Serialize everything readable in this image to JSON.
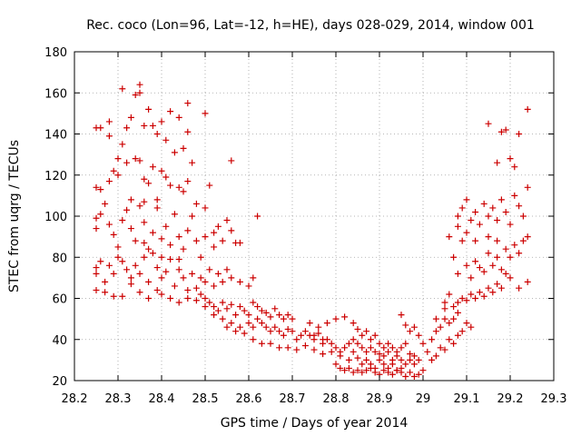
{
  "chart_data": {
    "type": "scatter",
    "title": "Rec. coco (Lon=96, Lat=-12, h=HE), days 028-029, 2014, window 001",
    "xlabel": "GPS time / Days of year 2014",
    "ylabel": "STEC from uqrg / TECUs",
    "xlim": [
      28.2,
      29.3
    ],
    "ylim": [
      20,
      180
    ],
    "grid": true,
    "legend": "none",
    "marker": "plus",
    "color": "#cc0000",
    "xticks": [
      {
        "value": 28.2,
        "label": "28.2"
      },
      {
        "value": 28.3,
        "label": "28.3"
      },
      {
        "value": 28.4,
        "label": "28.4"
      },
      {
        "value": 28.5,
        "label": "28.5"
      },
      {
        "value": 28.6,
        "label": "28.6"
      },
      {
        "value": 28.7,
        "label": "28.7"
      },
      {
        "value": 28.8,
        "label": "28.8"
      },
      {
        "value": 28.9,
        "label": "28.9"
      },
      {
        "value": 29.0,
        "label": "29"
      },
      {
        "value": 29.1,
        "label": "29.1"
      },
      {
        "value": 29.2,
        "label": "29.2"
      },
      {
        "value": 29.3,
        "label": "29.3"
      }
    ],
    "yticks": [
      {
        "value": 20,
        "label": "20"
      },
      {
        "value": 40,
        "label": "40"
      },
      {
        "value": 60,
        "label": "60"
      },
      {
        "value": 80,
        "label": "80"
      },
      {
        "value": 100,
        "label": "100"
      },
      {
        "value": 120,
        "label": "120"
      },
      {
        "value": 140,
        "label": "140"
      },
      {
        "value": 160,
        "label": "160"
      },
      {
        "value": 180,
        "label": "180"
      }
    ],
    "points": [
      [
        28.25,
        143
      ],
      [
        28.26,
        143
      ],
      [
        28.28,
        146
      ],
      [
        28.31,
        162
      ],
      [
        28.33,
        148
      ],
      [
        28.34,
        159
      ],
      [
        28.35,
        164
      ],
      [
        28.35,
        160
      ],
      [
        28.36,
        144
      ],
      [
        28.37,
        152
      ],
      [
        28.39,
        140
      ],
      [
        28.4,
        146
      ],
      [
        28.42,
        151
      ],
      [
        28.44,
        148
      ],
      [
        28.45,
        133
      ],
      [
        28.46,
        155
      ],
      [
        28.46,
        141
      ],
      [
        28.5,
        150
      ],
      [
        28.56,
        127
      ],
      [
        28.28,
        139
      ],
      [
        28.3,
        128
      ],
      [
        28.32,
        143
      ],
      [
        28.35,
        127
      ],
      [
        28.38,
        144
      ],
      [
        28.41,
        137
      ],
      [
        28.25,
        114
      ],
      [
        28.26,
        113
      ],
      [
        28.28,
        117
      ],
      [
        28.29,
        122
      ],
      [
        28.3,
        120
      ],
      [
        28.31,
        135
      ],
      [
        28.32,
        126
      ],
      [
        28.33,
        108
      ],
      [
        28.34,
        128
      ],
      [
        28.36,
        118
      ],
      [
        28.37,
        116
      ],
      [
        28.38,
        124
      ],
      [
        28.39,
        108
      ],
      [
        28.4,
        122
      ],
      [
        28.42,
        115
      ],
      [
        28.43,
        131
      ],
      [
        28.44,
        114
      ],
      [
        28.45,
        112
      ],
      [
        28.47,
        126
      ],
      [
        28.48,
        106
      ],
      [
        28.5,
        104
      ],
      [
        28.51,
        115
      ],
      [
        28.52,
        92
      ],
      [
        28.55,
        98
      ],
      [
        28.58,
        87
      ],
      [
        28.62,
        100
      ],
      [
        28.36,
        107
      ],
      [
        28.41,
        119
      ],
      [
        28.46,
        117
      ],
      [
        28.25,
        99
      ],
      [
        28.25,
        94
      ],
      [
        28.26,
        101
      ],
      [
        28.27,
        106
      ],
      [
        28.28,
        96
      ],
      [
        28.29,
        91
      ],
      [
        28.3,
        85
      ],
      [
        28.31,
        98
      ],
      [
        28.32,
        103
      ],
      [
        28.33,
        94
      ],
      [
        28.34,
        88
      ],
      [
        28.35,
        105
      ],
      [
        28.36,
        97
      ],
      [
        28.37,
        84
      ],
      [
        28.38,
        92
      ],
      [
        28.39,
        104
      ],
      [
        28.4,
        89
      ],
      [
        28.41,
        95
      ],
      [
        28.42,
        86
      ],
      [
        28.43,
        101
      ],
      [
        28.44,
        90
      ],
      [
        28.45,
        84
      ],
      [
        28.46,
        93
      ],
      [
        28.47,
        100
      ],
      [
        28.48,
        88
      ],
      [
        28.49,
        80
      ],
      [
        28.5,
        90
      ],
      [
        28.52,
        85
      ],
      [
        28.54,
        88
      ],
      [
        28.56,
        93
      ],
      [
        28.57,
        87
      ],
      [
        28.53,
        95
      ],
      [
        28.25,
        75
      ],
      [
        28.25,
        72
      ],
      [
        28.26,
        78
      ],
      [
        28.27,
        68
      ],
      [
        28.28,
        76
      ],
      [
        28.29,
        72
      ],
      [
        28.3,
        80
      ],
      [
        28.31,
        78
      ],
      [
        28.32,
        74
      ],
      [
        28.33,
        70
      ],
      [
        28.34,
        76
      ],
      [
        28.35,
        72
      ],
      [
        28.36,
        80
      ],
      [
        28.37,
        68
      ],
      [
        28.38,
        82
      ],
      [
        28.39,
        75
      ],
      [
        28.4,
        70
      ],
      [
        28.41,
        73
      ],
      [
        28.42,
        79
      ],
      [
        28.43,
        66
      ],
      [
        28.44,
        74
      ],
      [
        28.45,
        70
      ],
      [
        28.46,
        64
      ],
      [
        28.47,
        72
      ],
      [
        28.48,
        65
      ],
      [
        28.49,
        70
      ],
      [
        28.5,
        68
      ],
      [
        28.51,
        74
      ],
      [
        28.52,
        66
      ],
      [
        28.53,
        72
      ],
      [
        28.54,
        68
      ],
      [
        28.55,
        74
      ],
      [
        28.56,
        70
      ],
      [
        28.58,
        68
      ],
      [
        28.6,
        66
      ],
      [
        28.61,
        70
      ],
      [
        28.4,
        80
      ],
      [
        28.36,
        87
      ],
      [
        28.44,
        79
      ],
      [
        28.25,
        64
      ],
      [
        28.27,
        63
      ],
      [
        28.29,
        61
      ],
      [
        28.31,
        61
      ],
      [
        28.33,
        67
      ],
      [
        28.35,
        63
      ],
      [
        28.37,
        60
      ],
      [
        28.39,
        64
      ],
      [
        28.4,
        62
      ],
      [
        28.42,
        60
      ],
      [
        28.44,
        58
      ],
      [
        28.46,
        60
      ],
      [
        28.48,
        59
      ],
      [
        28.49,
        62
      ],
      [
        28.5,
        60
      ],
      [
        28.51,
        58
      ],
      [
        28.52,
        56
      ],
      [
        28.53,
        54
      ],
      [
        28.54,
        58
      ],
      [
        28.55,
        55
      ],
      [
        28.56,
        57
      ],
      [
        28.57,
        52
      ],
      [
        28.58,
        56
      ],
      [
        28.59,
        54
      ],
      [
        28.6,
        52
      ],
      [
        28.61,
        58
      ],
      [
        28.62,
        56
      ],
      [
        28.63,
        54
      ],
      [
        28.64,
        53
      ],
      [
        28.65,
        51
      ],
      [
        28.66,
        55
      ],
      [
        28.67,
        52
      ],
      [
        28.68,
        50
      ],
      [
        28.69,
        52
      ],
      [
        28.7,
        50
      ],
      [
        28.5,
        56
      ],
      [
        28.52,
        52
      ],
      [
        28.54,
        50
      ],
      [
        28.56,
        48
      ],
      [
        28.58,
        46
      ],
      [
        28.6,
        48
      ],
      [
        28.61,
        46
      ],
      [
        28.62,
        50
      ],
      [
        28.63,
        48
      ],
      [
        28.64,
        46
      ],
      [
        28.65,
        44
      ],
      [
        28.66,
        46
      ],
      [
        28.67,
        44
      ],
      [
        28.68,
        42
      ],
      [
        28.69,
        45
      ],
      [
        28.7,
        44
      ],
      [
        28.71,
        40
      ],
      [
        28.72,
        42
      ],
      [
        28.73,
        44
      ],
      [
        28.74,
        42
      ],
      [
        28.75,
        40
      ],
      [
        28.76,
        43
      ],
      [
        28.77,
        38
      ],
      [
        28.78,
        40
      ],
      [
        28.55,
        46
      ],
      [
        28.57,
        44
      ],
      [
        28.59,
        43
      ],
      [
        28.61,
        40
      ],
      [
        28.63,
        38
      ],
      [
        28.65,
        38
      ],
      [
        28.67,
        36
      ],
      [
        28.69,
        36
      ],
      [
        28.71,
        35
      ],
      [
        28.73,
        37
      ],
      [
        28.75,
        35
      ],
      [
        28.77,
        33
      ],
      [
        28.79,
        34
      ],
      [
        28.81,
        32
      ],
      [
        28.83,
        30
      ],
      [
        28.84,
        34
      ],
      [
        28.85,
        31
      ],
      [
        28.86,
        28
      ],
      [
        28.87,
        30
      ],
      [
        28.88,
        28
      ],
      [
        28.89,
        26
      ],
      [
        28.9,
        30
      ],
      [
        28.91,
        28
      ],
      [
        28.92,
        26
      ],
      [
        28.93,
        28
      ],
      [
        28.94,
        25
      ],
      [
        28.95,
        26
      ],
      [
        28.74,
        48
      ],
      [
        28.76,
        46
      ],
      [
        28.78,
        48
      ],
      [
        28.8,
        50
      ],
      [
        28.82,
        51
      ],
      [
        28.84,
        48
      ],
      [
        28.85,
        45
      ],
      [
        28.86,
        42
      ],
      [
        28.87,
        44
      ],
      [
        28.88,
        40
      ],
      [
        28.89,
        42
      ],
      [
        28.9,
        38
      ],
      [
        28.91,
        36
      ],
      [
        28.92,
        38
      ],
      [
        28.93,
        36
      ],
      [
        28.94,
        34
      ],
      [
        28.95,
        36
      ],
      [
        28.96,
        38
      ],
      [
        28.97,
        33
      ],
      [
        28.98,
        32
      ],
      [
        28.99,
        30
      ],
      [
        28.75,
        42
      ],
      [
        28.77,
        40
      ],
      [
        28.79,
        38
      ],
      [
        28.8,
        36
      ],
      [
        28.81,
        34
      ],
      [
        28.82,
        36
      ],
      [
        28.83,
        38
      ],
      [
        28.84,
        40
      ],
      [
        28.85,
        38
      ],
      [
        28.86,
        36
      ],
      [
        28.87,
        34
      ],
      [
        28.88,
        36
      ],
      [
        28.89,
        34
      ],
      [
        28.9,
        33
      ],
      [
        28.91,
        32
      ],
      [
        28.92,
        34
      ],
      [
        28.93,
        30
      ],
      [
        28.94,
        32
      ],
      [
        28.95,
        30
      ],
      [
        28.96,
        28
      ],
      [
        28.97,
        30
      ],
      [
        28.98,
        28
      ],
      [
        28.8,
        28
      ],
      [
        28.81,
        26
      ],
      [
        28.82,
        25
      ],
      [
        28.83,
        26
      ],
      [
        28.84,
        24
      ],
      [
        28.85,
        25
      ],
      [
        28.86,
        24
      ],
      [
        28.87,
        25
      ],
      [
        28.88,
        26
      ],
      [
        28.89,
        24
      ],
      [
        28.9,
        23
      ],
      [
        28.91,
        25
      ],
      [
        28.92,
        24
      ],
      [
        28.93,
        23
      ],
      [
        28.94,
        25
      ],
      [
        28.95,
        24
      ],
      [
        28.96,
        22
      ],
      [
        28.97,
        24
      ],
      [
        28.98,
        22
      ],
      [
        28.99,
        23
      ],
      [
        29.0,
        25
      ],
      [
        28.95,
        52
      ],
      [
        28.96,
        47
      ],
      [
        28.97,
        44
      ],
      [
        28.98,
        46
      ],
      [
        28.99,
        42
      ],
      [
        29.0,
        38
      ],
      [
        29.01,
        34
      ],
      [
        29.02,
        30
      ],
      [
        29.03,
        32
      ],
      [
        29.04,
        36
      ],
      [
        29.05,
        35
      ],
      [
        29.06,
        40
      ],
      [
        29.07,
        38
      ],
      [
        29.08,
        42
      ],
      [
        29.09,
        44
      ],
      [
        29.1,
        48
      ],
      [
        29.11,
        46
      ],
      [
        29.02,
        40
      ],
      [
        29.03,
        44
      ],
      [
        29.04,
        46
      ],
      [
        29.05,
        50
      ],
      [
        29.06,
        48
      ],
      [
        29.07,
        50
      ],
      [
        29.08,
        53
      ],
      [
        29.03,
        50
      ],
      [
        29.05,
        55
      ],
      [
        29.07,
        56
      ],
      [
        29.08,
        58
      ],
      [
        29.09,
        60
      ],
      [
        29.1,
        59
      ],
      [
        29.11,
        62
      ],
      [
        29.12,
        60
      ],
      [
        29.13,
        63
      ],
      [
        29.14,
        61
      ],
      [
        29.15,
        65
      ],
      [
        29.16,
        63
      ],
      [
        29.17,
        67
      ],
      [
        29.18,
        65
      ],
      [
        29.19,
        72
      ],
      [
        29.2,
        70
      ],
      [
        29.22,
        65
      ],
      [
        29.24,
        68
      ],
      [
        29.05,
        58
      ],
      [
        29.06,
        62
      ],
      [
        29.06,
        90
      ],
      [
        29.07,
        80
      ],
      [
        29.08,
        72
      ],
      [
        29.08,
        95
      ],
      [
        29.09,
        88
      ],
      [
        29.1,
        76
      ],
      [
        29.11,
        70
      ],
      [
        29.12,
        78
      ],
      [
        29.13,
        75
      ],
      [
        29.14,
        73
      ],
      [
        29.15,
        82
      ],
      [
        29.16,
        76
      ],
      [
        29.17,
        80
      ],
      [
        29.18,
        74
      ],
      [
        29.19,
        84
      ],
      [
        29.2,
        80
      ],
      [
        29.21,
        86
      ],
      [
        29.22,
        82
      ],
      [
        29.23,
        88
      ],
      [
        29.24,
        90
      ],
      [
        29.08,
        100
      ],
      [
        29.09,
        104
      ],
      [
        29.1,
        108
      ],
      [
        29.11,
        98
      ],
      [
        29.12,
        102
      ],
      [
        29.13,
        96
      ],
      [
        29.14,
        106
      ],
      [
        29.15,
        100
      ],
      [
        29.16,
        104
      ],
      [
        29.17,
        98
      ],
      [
        29.18,
        108
      ],
      [
        29.19,
        102
      ],
      [
        29.2,
        96
      ],
      [
        29.21,
        110
      ],
      [
        29.22,
        105
      ],
      [
        29.23,
        100
      ],
      [
        29.24,
        114
      ],
      [
        29.1,
        92
      ],
      [
        29.12,
        88
      ],
      [
        29.15,
        90
      ],
      [
        29.17,
        88
      ],
      [
        29.15,
        145
      ],
      [
        29.17,
        126
      ],
      [
        29.18,
        141
      ],
      [
        29.19,
        142
      ],
      [
        29.2,
        128
      ],
      [
        29.21,
        124
      ],
      [
        29.22,
        140
      ],
      [
        29.24,
        152
      ]
    ]
  }
}
